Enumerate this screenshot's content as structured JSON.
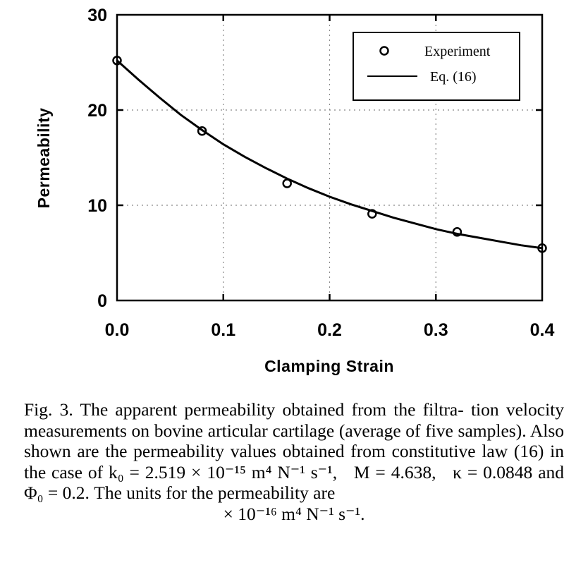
{
  "chart_data": {
    "type": "scatter",
    "xlabel": "Clamping Strain",
    "ylabel": "Permeability",
    "xlim": [
      0.0,
      0.4
    ],
    "ylim": [
      0,
      30
    ],
    "xticks": [
      "0.0",
      "0.1",
      "0.2",
      "0.3",
      "0.4"
    ],
    "yticks": [
      "0",
      "10",
      "20",
      "30"
    ],
    "grid": "dotted",
    "legend": {
      "placement": "top-right",
      "entries": [
        {
          "label": "Experiment",
          "marker": "circle"
        },
        {
          "label": "Eq. (16)",
          "marker": "line"
        }
      ]
    },
    "series": [
      {
        "name": "Experiment",
        "style": "markers",
        "x": [
          0.0,
          0.08,
          0.16,
          0.24,
          0.32,
          0.4
        ],
        "y": [
          25.2,
          17.8,
          12.3,
          9.1,
          7.2,
          5.5
        ]
      },
      {
        "name": "Eq. (16)",
        "style": "line",
        "x": [
          0.0,
          0.02,
          0.04,
          0.06,
          0.08,
          0.1,
          0.12,
          0.14,
          0.16,
          0.18,
          0.2,
          0.22,
          0.24,
          0.26,
          0.28,
          0.3,
          0.32,
          0.34,
          0.36,
          0.38,
          0.4
        ],
        "y": [
          25.2,
          23.2,
          21.3,
          19.5,
          17.9,
          16.4,
          15.1,
          13.9,
          12.8,
          11.8,
          10.9,
          10.1,
          9.4,
          8.7,
          8.1,
          7.5,
          7.0,
          6.6,
          6.2,
          5.8,
          5.5
        ]
      }
    ]
  },
  "caption": {
    "line1": "Fig. 3. The apparent permeability obtained from the filtra-",
    "line2": "tion velocity measurements on bovine articular cartilage",
    "line3": "(average of five samples). Also shown are the permeability",
    "line4": "values obtained from constitutive law (16) in the case",
    "k0_eq": "of  k₀ = 2.519 × 10⁻¹⁵ m⁴ N⁻¹ s⁻¹,",
    "M_eq": "M = 4.638,",
    "kappa_eq": "κ = 0.0848",
    "phi_line": "and  Φ₀ = 0.2.  The  units  for  the  permeability  are",
    "units": "× 10⁻¹⁶ m⁴ N⁻¹ s⁻¹."
  }
}
